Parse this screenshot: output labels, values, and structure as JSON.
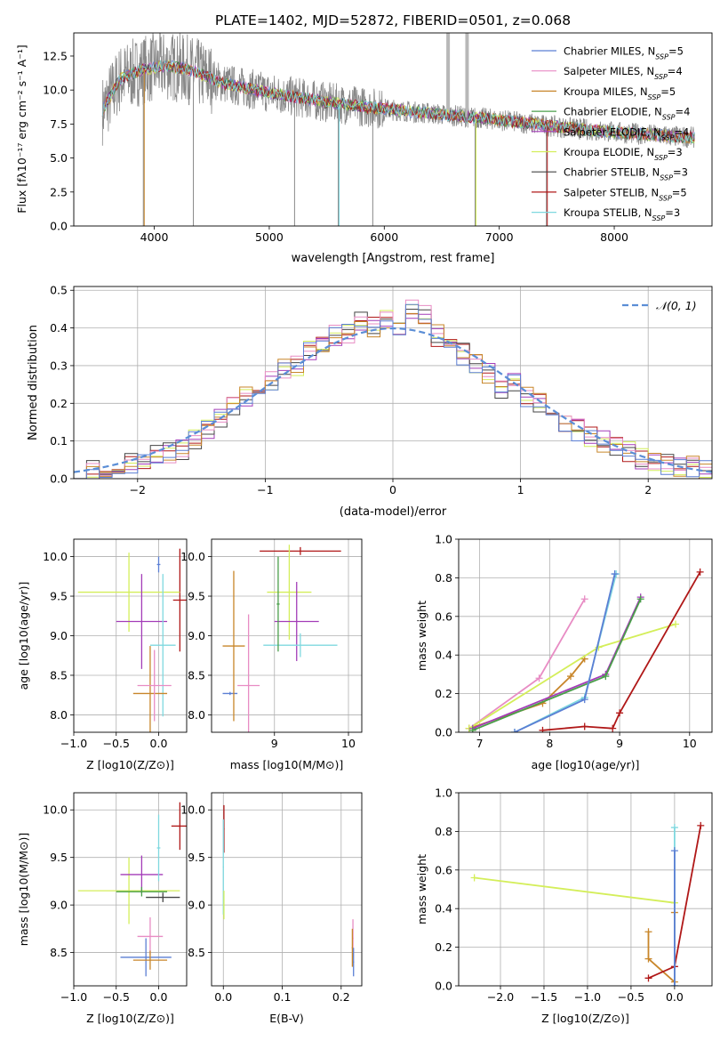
{
  "figure_title": "PLATE=1402, MJD=52872, FIBERID=0501, z=0.068",
  "colors": {
    "Chabrier MILES": "#5b7fd4",
    "Salpeter MILES": "#e88cc4",
    "Kroupa MILES": "#c8862a",
    "Chabrier ELODIE": "#4a9e4a",
    "Salpeter ELODIE": "#a33cb8",
    "Kroupa ELODIE": "#d4ee5a",
    "Chabrier STELIB": "#444444",
    "Salpeter STELIB": "#b01818",
    "Kroupa STELIB": "#7fd8df",
    "data": "#888888",
    "normal": "#5b8ed6"
  },
  "chart_data": [
    {
      "id": "spectrum",
      "type": "line",
      "title": "PLATE=1402, MJD=52872, FIBERID=0501, z=0.068",
      "xlabel": "wavelength [Angstrom, rest frame]",
      "ylabel": "Flux [f_λ 10^-17 erg cm^-2 s^-1 A^-1]",
      "xlim": [
        3300,
        8850
      ],
      "ylim": [
        0,
        14.2
      ],
      "xticks": [
        4000,
        5000,
        6000,
        7000,
        8000
      ],
      "yticks": [
        0.0,
        2.5,
        5.0,
        7.5,
        10.0,
        12.5
      ],
      "legend": [
        "Chabrier MILES, N_SSP=5",
        "Salpeter MILES, N_SSP=4",
        "Kroupa MILES, N_SSP=5",
        "Chabrier ELODIE, N_SSP=4",
        "Salpeter ELODIE, N_SSP=4",
        "Kroupa ELODIE, N_SSP=3",
        "Chabrier STELIB, N_SSP=3",
        "Salpeter STELIB, N_SSP=5",
        "Kroupa STELIB, N_SSP=3"
      ],
      "legend_placement": "top-right",
      "model_continuum": {
        "x": [
          3550,
          3700,
          3900,
          4100,
          4300,
          4600,
          5000,
          5500,
          6000,
          6500,
          7000,
          7500,
          8000,
          8500,
          8700
        ],
        "y": [
          8.5,
          10.8,
          11.5,
          11.8,
          11.5,
          10.5,
          9.8,
          9.1,
          8.6,
          8.2,
          7.8,
          7.3,
          6.9,
          6.6,
          6.5
        ]
      },
      "absorption_lines": [
        {
          "x": 3905,
          "ymin": 0.0
        },
        {
          "x": 4340,
          "ymin": 0.0
        },
        {
          "x": 5220,
          "ymin": 0.0
        },
        {
          "x": 5600,
          "ymin": 0.0
        },
        {
          "x": 5900,
          "ymin": 0.0
        },
        {
          "x": 6790,
          "ymin": 0.0
        },
        {
          "x": 7410,
          "ymin": 0.0
        }
      ],
      "emission_spikes": [
        {
          "x": 6555,
          "ymax": 14.2
        },
        {
          "x": 6720,
          "ymax": 14.2
        }
      ]
    },
    {
      "id": "residuals",
      "type": "step",
      "xlabel": "(data-model)/error",
      "ylabel": "Normed distribution",
      "xlim": [
        -2.5,
        2.5
      ],
      "ylim": [
        0,
        0.51
      ],
      "xticks": [
        -2,
        -1,
        0,
        1,
        2
      ],
      "yticks": [
        0.0,
        0.1,
        0.2,
        0.3,
        0.4,
        0.5
      ],
      "legend": "𝒩(0, 1)",
      "legend_placement": "top-right",
      "bin_edges": [
        -2.5,
        -2.4,
        -2.3,
        -2.2,
        -2.1,
        -2.0,
        -1.9,
        -1.8,
        -1.7,
        -1.6,
        -1.5,
        -1.4,
        -1.3,
        -1.2,
        -1.1,
        -1.0,
        -0.9,
        -0.8,
        -0.7,
        -0.6,
        -0.5,
        -0.4,
        -0.3,
        -0.2,
        -0.1,
        0.0,
        0.1,
        0.2,
        0.3,
        0.4,
        0.5,
        0.6,
        0.7,
        0.8,
        0.9,
        1.0,
        1.1,
        1.2,
        1.3,
        1.4,
        1.5,
        1.6,
        1.7,
        1.8,
        1.9,
        2.0,
        2.1,
        2.2,
        2.3,
        2.4,
        2.5
      ],
      "hist_reference": [
        0.03,
        0.025,
        0.03,
        0.035,
        0.04,
        0.05,
        0.06,
        0.07,
        0.08,
        0.1,
        0.13,
        0.16,
        0.19,
        0.22,
        0.24,
        0.26,
        0.29,
        0.3,
        0.34,
        0.36,
        0.38,
        0.39,
        0.42,
        0.4,
        0.43,
        0.4,
        0.45,
        0.44,
        0.38,
        0.35,
        0.33,
        0.3,
        0.28,
        0.24,
        0.26,
        0.22,
        0.2,
        0.18,
        0.15,
        0.13,
        0.11,
        0.1,
        0.08,
        0.07,
        0.055,
        0.05,
        0.04,
        0.035,
        0.03,
        0.02
      ]
    },
    {
      "id": "age-vs-Z",
      "type": "scatter",
      "xlabel": "Z [log10(Z/Z⊙)]",
      "ylabel": "age  [log10(age/yr)]",
      "xlim": [
        -1.0,
        0.33
      ],
      "ylim": [
        7.78,
        10.22
      ],
      "xticks": [
        -1.0,
        -0.5,
        0.0
      ],
      "yticks": [
        8.0,
        8.5,
        9.0,
        9.5,
        10.0
      ],
      "points": [
        {
          "model": "Salpeter STELIB",
          "x": 0.25,
          "xerr": 0.08,
          "y": 9.45,
          "yerr": 0.65
        },
        {
          "model": "Kroupa ELODIE",
          "x": -0.35,
          "xerr": 0.6,
          "y": 9.55,
          "yerr": 0.5
        },
        {
          "model": "Salpeter ELODIE",
          "x": -0.2,
          "xerr": 0.3,
          "y": 9.18,
          "yerr": 0.6
        },
        {
          "model": "Kroupa STELIB",
          "x": 0.05,
          "xerr": 0.15,
          "y": 8.88,
          "yerr": 0.9
        },
        {
          "model": "Kroupa MILES",
          "x": -0.1,
          "xerr": 0.2,
          "y": 8.27,
          "yerr": 0.6
        },
        {
          "model": "Salpeter MILES",
          "x": -0.05,
          "xerr": 0.2,
          "y": 8.37,
          "yerr": 0.45
        },
        {
          "model": "Chabrier MILES",
          "x": 0.0,
          "xerr": 0.02,
          "y": 9.9,
          "yerr": 0.1
        }
      ]
    },
    {
      "id": "age-vs-mass",
      "type": "scatter",
      "xlabel": "mass [log10(M/M⊙)]",
      "ylabel": "",
      "xlim": [
        8.15,
        10.18
      ],
      "ylim": [
        7.78,
        10.22
      ],
      "xticks": [
        9,
        10
      ],
      "yticks": [
        8.0,
        8.5,
        9.0,
        9.5,
        10.0
      ],
      "points": [
        {
          "model": "Salpeter STELIB",
          "x": 9.35,
          "xerr": 0.55,
          "y": 10.07,
          "yerr": 0.05
        },
        {
          "model": "Kroupa ELODIE",
          "x": 9.2,
          "xerr": 0.3,
          "y": 9.55,
          "yerr": 0.6
        },
        {
          "model": "Salpeter ELODIE",
          "x": 9.3,
          "xerr": 0.3,
          "y": 9.18,
          "yerr": 0.5
        },
        {
          "model": "Kroupa STELIB",
          "x": 9.35,
          "xerr": 0.5,
          "y": 8.88,
          "yerr": 0.15
        },
        {
          "model": "Chabrier MILES",
          "x": 8.4,
          "xerr": 0.1,
          "y": 8.27,
          "yerr": 0.02
        },
        {
          "model": "Kroupa MILES",
          "x": 8.45,
          "xerr": 0.15,
          "y": 8.87,
          "yerr": 0.95
        },
        {
          "model": "Salpeter MILES",
          "x": 8.65,
          "xerr": 0.15,
          "y": 8.37,
          "yerr": 0.9
        },
        {
          "model": "Chabrier ELODIE",
          "x": 9.05,
          "xerr": 0.02,
          "y": 9.4,
          "yerr": 0.6
        }
      ]
    },
    {
      "id": "weight-vs-age",
      "type": "line",
      "xlabel": "age  [log10(age/yr)]",
      "ylabel": "mass weight",
      "xlim": [
        6.7,
        10.32
      ],
      "ylim": [
        0.0,
        1.0
      ],
      "xticks": [
        7,
        8,
        9,
        10
      ],
      "yticks": [
        0.0,
        0.2,
        0.4,
        0.6,
        0.8,
        1.0
      ],
      "series": [
        {
          "model": "Salpeter MILES",
          "x": [
            6.85,
            7.85,
            8.5
          ],
          "y": [
            0.02,
            0.28,
            0.69
          ]
        },
        {
          "model": "Kroupa MILES",
          "x": [
            6.85,
            7.9,
            8.3,
            8.5
          ],
          "y": [
            0.02,
            0.15,
            0.29,
            0.38
          ]
        },
        {
          "model": "Kroupa ELODIE",
          "x": [
            6.85,
            8.7,
            9.8
          ],
          "y": [
            0.02,
            0.44,
            0.56
          ]
        },
        {
          "model": "Salpeter ELODIE",
          "x": [
            6.9,
            8.8,
            9.3
          ],
          "y": [
            0.02,
            0.3,
            0.7
          ]
        },
        {
          "model": "Chabrier ELODIE",
          "x": [
            6.9,
            8.8,
            9.3
          ],
          "y": [
            0.01,
            0.29,
            0.69
          ]
        },
        {
          "model": "Kroupa STELIB",
          "x": [
            7.5,
            8.5,
            8.95
          ],
          "y": [
            0.0,
            0.18,
            0.82
          ]
        },
        {
          "model": "Chabrier MILES",
          "x": [
            7.5,
            8.5,
            8.93
          ],
          "y": [
            0.0,
            0.17,
            0.82
          ]
        },
        {
          "model": "Salpeter STELIB",
          "x": [
            7.9,
            8.5,
            8.9,
            9.0,
            10.15
          ],
          "y": [
            0.01,
            0.03,
            0.02,
            0.1,
            0.83
          ]
        }
      ]
    },
    {
      "id": "mass-vs-Z",
      "type": "scatter",
      "xlabel": "Z [log10(Z/Z⊙)]",
      "ylabel": "mass [log10(M/M⊙)]",
      "xlim": [
        -1.0,
        0.33
      ],
      "ylim": [
        8.15,
        10.18
      ],
      "xticks": [
        -1.0,
        -0.5,
        0.0
      ],
      "yticks": [
        8.5,
        9.0,
        9.5,
        10.0
      ],
      "points": [
        {
          "model": "Salpeter STELIB",
          "x": 0.25,
          "xerr": 0.1,
          "y": 9.83,
          "yerr": 0.25
        },
        {
          "model": "Kroupa ELODIE",
          "x": -0.35,
          "xerr": 0.6,
          "y": 9.15,
          "yerr": 0.35
        },
        {
          "model": "Salpeter ELODIE",
          "x": -0.2,
          "xerr": 0.25,
          "y": 9.32,
          "yerr": 0.2
        },
        {
          "model": "Chabrier ELODIE",
          "x": -0.2,
          "xerr": 0.3,
          "y": 9.14,
          "yerr": 0.05
        },
        {
          "model": "Chabrier STELIB",
          "x": 0.05,
          "xerr": 0.2,
          "y": 9.08,
          "yerr": 0.05
        },
        {
          "model": "Kroupa STELIB",
          "x": 0.0,
          "xerr": 0.02,
          "y": 9.6,
          "yerr": 0.35
        },
        {
          "model": "Salpeter MILES",
          "x": -0.1,
          "xerr": 0.15,
          "y": 8.67,
          "yerr": 0.2
        },
        {
          "model": "Chabrier MILES",
          "x": -0.15,
          "xerr": 0.3,
          "y": 8.45,
          "yerr": 0.2
        },
        {
          "model": "Kroupa MILES",
          "x": -0.1,
          "xerr": 0.2,
          "y": 8.42,
          "yerr": 0.1
        }
      ]
    },
    {
      "id": "mass-vs-ebv",
      "type": "scatter",
      "xlabel": "E(B-V)",
      "ylabel": "",
      "xlim": [
        -0.02,
        0.235
      ],
      "ylim": [
        8.15,
        10.18
      ],
      "xticks": [
        0.0,
        0.1,
        0.2
      ],
      "yticks": [
        8.5,
        9.0,
        9.5,
        10.0
      ],
      "points": [
        {
          "model": "Salpeter STELIB",
          "x": 0.001,
          "xerr": 0.001,
          "y": 9.8,
          "yerr": 0.25
        },
        {
          "model": "Kroupa STELIB",
          "x": 0.0,
          "xerr": 0.001,
          "y": 9.4,
          "yerr": 0.5
        },
        {
          "model": "Kroupa ELODIE",
          "x": 0.001,
          "xerr": 0.001,
          "y": 9.0,
          "yerr": 0.15
        },
        {
          "model": "Salpeter MILES",
          "x": 0.22,
          "xerr": 0.001,
          "y": 8.65,
          "yerr": 0.2
        },
        {
          "model": "Chabrier MILES",
          "x": 0.221,
          "xerr": 0.001,
          "y": 8.4,
          "yerr": 0.15
        },
        {
          "model": "Kroupa MILES",
          "x": 0.219,
          "xerr": 0.001,
          "y": 8.55,
          "yerr": 0.2
        }
      ]
    },
    {
      "id": "weight-vs-Z",
      "type": "line",
      "xlabel": "Z [log10(Z/Z⊙)]",
      "ylabel": "mass weight",
      "xlim": [
        -2.48,
        0.43
      ],
      "ylim": [
        0.0,
        1.0
      ],
      "xticks": [
        -2.0,
        -1.5,
        -1.0,
        -0.5,
        0.0
      ],
      "yticks": [
        0.0,
        0.2,
        0.4,
        0.6,
        0.8,
        1.0
      ],
      "series": [
        {
          "model": "Kroupa ELODIE",
          "x": [
            -2.3,
            0.0
          ],
          "y": [
            0.56,
            0.43
          ]
        },
        {
          "model": "Kroupa MILES",
          "x": [
            -0.3,
            -0.3,
            0.0,
            0.0
          ],
          "y": [
            0.28,
            0.14,
            0.02,
            0.38
          ]
        },
        {
          "model": "Salpeter STELIB",
          "x": [
            -0.3,
            0.0,
            0.3
          ],
          "y": [
            0.04,
            0.1,
            0.83
          ]
        },
        {
          "model": "Kroupa STELIB",
          "x": [
            0.0,
            0.0
          ],
          "y": [
            0.0,
            0.82
          ]
        },
        {
          "model": "Chabrier MILES",
          "x": [
            0.0,
            0.0
          ],
          "y": [
            0.0,
            0.7
          ]
        }
      ]
    }
  ]
}
